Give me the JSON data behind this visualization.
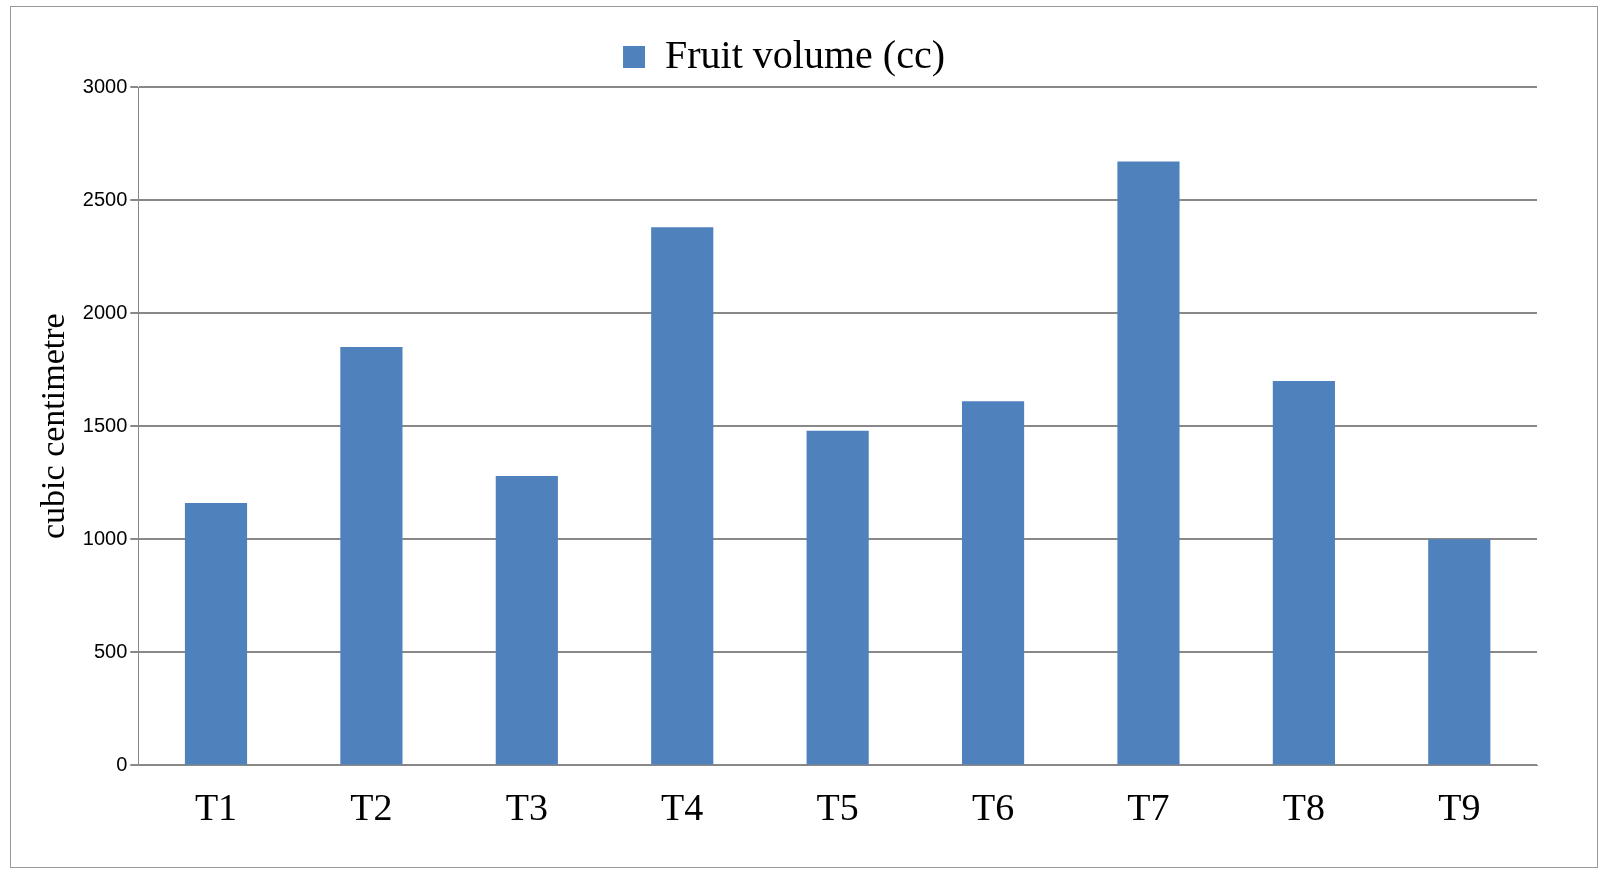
{
  "chart_data": {
    "type": "bar",
    "ylabel": "cubic centimetre",
    "categories": [
      "T1",
      "T2",
      "T3",
      "T4",
      "T5",
      "T6",
      "T7",
      "T8",
      "T9"
    ],
    "series": [
      {
        "name": "Fruit volume (cc)",
        "color": "#4f81bd",
        "values": [
          1160,
          1850,
          1280,
          2380,
          1480,
          1610,
          2670,
          1700,
          1000
        ]
      }
    ],
    "ylim": [
      0,
      3000
    ],
    "yticks": [
      0,
      500,
      1000,
      1500,
      2000,
      2500,
      3000
    ],
    "grid": "y",
    "legend": "top"
  }
}
